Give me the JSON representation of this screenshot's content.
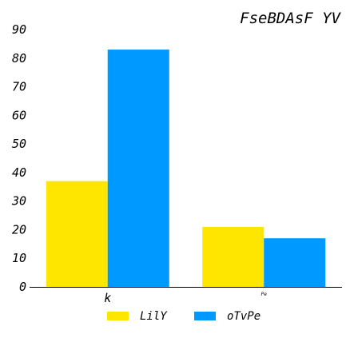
{
  "chart_data": {
    "type": "bar",
    "title": "FseBDAsF YV",
    "categories": [
      "k",
      "Pe"
    ],
    "series": [
      {
        "name": "LilY",
        "color": "#ffe600",
        "values": [
          37,
          21
        ]
      },
      {
        "name": "oTvPe",
        "color": "#0099ff",
        "values": [
          83,
          17
        ]
      }
    ],
    "ylim": [
      0,
      90
    ],
    "yticks": [
      0,
      10,
      20,
      30,
      40,
      50,
      60,
      70,
      80,
      90
    ],
    "grid": false,
    "legend_position": "bottom-center"
  }
}
